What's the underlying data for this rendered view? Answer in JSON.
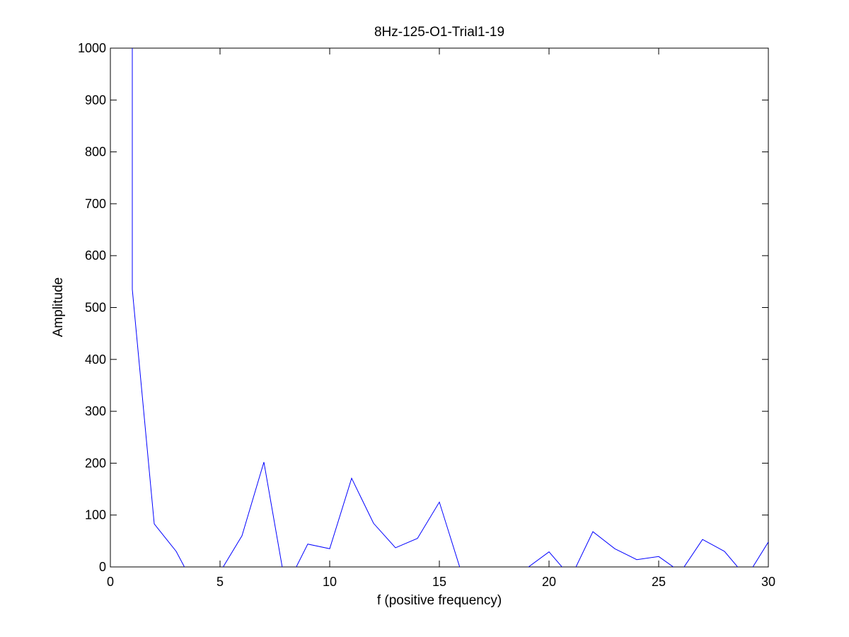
{
  "chart_data": {
    "type": "line",
    "title": "8Hz-125-O1-Trial1-19",
    "xlabel": "f (positive frequency)",
    "ylabel": "Amplitude",
    "xlim": [
      0,
      30
    ],
    "ylim": [
      0,
      1000
    ],
    "xticks": [
      "0",
      "5",
      "10",
      "15",
      "20",
      "25",
      "30"
    ],
    "yticks": [
      "0",
      "100",
      "200",
      "300",
      "400",
      "500",
      "600",
      "700",
      "800",
      "900",
      "1000"
    ],
    "grid": false,
    "legend": "none",
    "series": [
      {
        "color": "#0000ff",
        "x": [
          1,
          1,
          2,
          3,
          4,
          5,
          6,
          7,
          8,
          9,
          10,
          11,
          12,
          13,
          14,
          15,
          16,
          17,
          18,
          19,
          20,
          21,
          22,
          23,
          24,
          25,
          26,
          27,
          28,
          29,
          30
        ],
        "y": [
          1000,
          535,
          83,
          30,
          -50,
          -10,
          60,
          202,
          -40,
          44,
          35,
          171,
          84,
          37,
          55,
          125,
          -10,
          -40,
          -40,
          -2,
          29,
          -20,
          68,
          35,
          14,
          20,
          -10,
          53,
          30,
          -20,
          48
        ]
      }
    ]
  }
}
